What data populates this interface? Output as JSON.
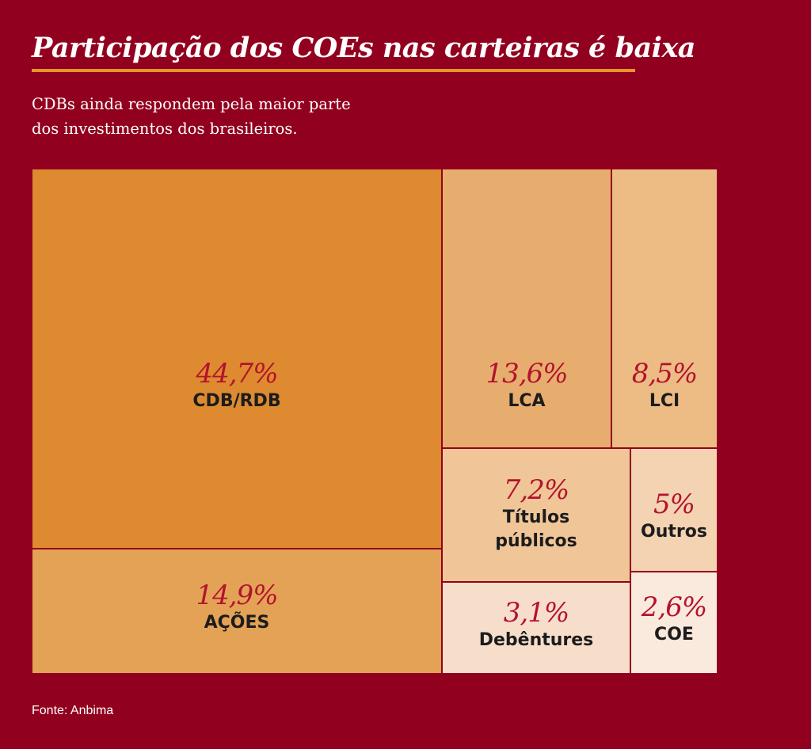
{
  "title": "Participação dos COEs nas carteiras é baixa",
  "subtitle": {
    "line1": "CDBs ainda respondem pela maior parte",
    "line2": "dos investimentos dos brasileiros."
  },
  "source": "Fonte: Anbima",
  "chart_data": {
    "type": "treemap",
    "title": "Participação dos COEs nas carteiras é baixa",
    "unit": "%",
    "items": [
      {
        "id": "cdb-rdb",
        "label": "CDB/RDB",
        "value": 44.7,
        "display": "44,7%",
        "color": "#dd8a30"
      },
      {
        "id": "acoes",
        "label": "AÇÕES",
        "value": 14.9,
        "display": "14,9%",
        "color": "#e4a256"
      },
      {
        "id": "lca",
        "label": "LCA",
        "value": 13.6,
        "display": "13,6%",
        "color": "#e7ad6e"
      },
      {
        "id": "lci",
        "label": "LCI",
        "value": 8.5,
        "display": "8,5%",
        "color": "#edbb84"
      },
      {
        "id": "titulos-publicos",
        "label": "Títulos públicos",
        "label_lines": [
          "Títulos",
          "públicos"
        ],
        "value": 7.2,
        "display": "7,2%",
        "color": "#f0c698"
      },
      {
        "id": "outros",
        "label": "Outros",
        "value": 5.0,
        "display": "5%",
        "color": "#f4d3b2"
      },
      {
        "id": "debentures",
        "label": "Debêntures",
        "value": 3.1,
        "display": "3,1%",
        "color": "#f7decb"
      },
      {
        "id": "coe",
        "label": "COE",
        "value": 2.6,
        "display": "2,6%",
        "color": "#fae9dd"
      }
    ]
  }
}
